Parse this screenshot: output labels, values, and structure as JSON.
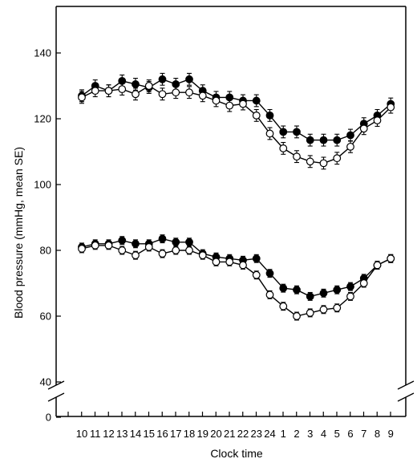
{
  "chart_data": {
    "type": "line",
    "xlabel": "Clock time",
    "ylabel": "Blood pressure  (mmHg, mean SE)",
    "categories": [
      "10",
      "11",
      "12",
      "13",
      "14",
      "15",
      "16",
      "17",
      "18",
      "19",
      "20",
      "21",
      "22",
      "23",
      "24",
      "1",
      "2",
      "3",
      "4",
      "5",
      "6",
      "7",
      "8",
      "9"
    ],
    "y_ticks": [
      0,
      40,
      60,
      80,
      100,
      120,
      140
    ],
    "ylim": [
      40,
      152
    ],
    "axis_break": true,
    "grid": false,
    "series": [
      {
        "group": "systolic",
        "marker": "filled",
        "values": [
          127,
          130,
          128.5,
          131.5,
          130.5,
          129.5,
          132,
          130.5,
          132,
          128.5,
          126.5,
          126.5,
          125.5,
          125.5,
          121,
          116,
          116,
          113.5,
          113.5,
          113.5,
          115,
          118.5,
          121,
          124.5
        ],
        "errors": [
          1.8,
          1.8,
          1.8,
          1.8,
          1.8,
          1.8,
          1.8,
          1.8,
          1.8,
          1.8,
          1.8,
          1.8,
          1.8,
          1.8,
          1.8,
          1.8,
          1.8,
          1.8,
          1.8,
          1.8,
          1.8,
          1.8,
          1.8,
          1.8
        ]
      },
      {
        "group": "systolic",
        "marker": "open",
        "values": [
          126.5,
          128.5,
          128.5,
          129,
          127.5,
          130,
          127.5,
          128,
          128,
          127,
          125.5,
          124,
          124.5,
          121,
          115.5,
          111,
          108.5,
          107,
          106.5,
          108,
          111.5,
          117,
          119.5,
          123.5
        ],
        "errors": [
          1.8,
          1.8,
          1.8,
          1.8,
          1.8,
          1.8,
          1.8,
          1.8,
          1.8,
          1.8,
          1.8,
          1.8,
          1.8,
          1.8,
          1.8,
          1.8,
          1.8,
          1.8,
          1.8,
          1.8,
          1.8,
          1.8,
          1.8,
          1.8
        ]
      },
      {
        "group": "diastolic",
        "marker": "filled",
        "values": [
          81,
          82,
          82,
          83,
          82,
          82,
          83.5,
          82.5,
          82.5,
          79,
          78,
          77.5,
          77,
          77.5,
          73,
          68.5,
          68,
          66,
          67,
          68,
          69,
          71.5,
          75.5,
          77.5
        ],
        "errors": [
          1.2,
          1.2,
          1.2,
          1.2,
          1.2,
          1.2,
          1.2,
          1.2,
          1.2,
          1.2,
          1.2,
          1.2,
          1.2,
          1.2,
          1.2,
          1.2,
          1.2,
          1.2,
          1.2,
          1.2,
          1.2,
          1.2,
          1.2,
          1.2
        ]
      },
      {
        "group": "diastolic",
        "marker": "open",
        "values": [
          80.5,
          81.5,
          81.5,
          80,
          78.5,
          81,
          79,
          80,
          80,
          78.5,
          76.5,
          76.5,
          75.5,
          72.5,
          66.5,
          63,
          60,
          61,
          62,
          62.5,
          66,
          70,
          75.5,
          77.5
        ],
        "errors": [
          1.2,
          1.2,
          1.2,
          1.2,
          1.2,
          1.2,
          1.2,
          1.2,
          1.2,
          1.2,
          1.2,
          1.2,
          1.2,
          1.2,
          1.2,
          1.2,
          1.2,
          1.2,
          1.2,
          1.2,
          1.2,
          1.2,
          1.2,
          1.2
        ]
      }
    ]
  }
}
